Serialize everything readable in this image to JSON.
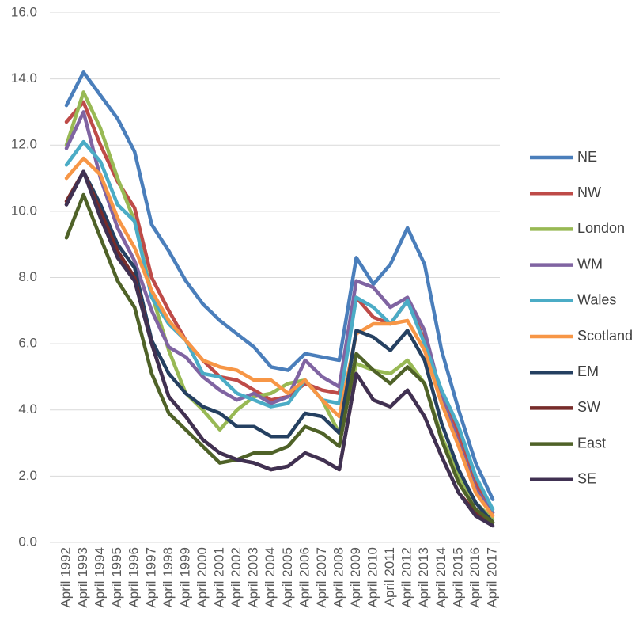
{
  "chart_data": {
    "type": "line",
    "categories": [
      "April 1992",
      "April 1993",
      "April 1994",
      "April 1995",
      "April 1996",
      "April 1997",
      "April 1998",
      "April 1999",
      "April 2000",
      "April 2001",
      "April 2002",
      "April 2003",
      "April 2004",
      "April 2005",
      "April 2006",
      "April 2007",
      "April 2008",
      "April 2009",
      "April 2010",
      "April 2011",
      "April 2012",
      "April 2013",
      "April 2014",
      "April 2015",
      "April 2016",
      "April 2017"
    ],
    "series": [
      {
        "name": "NE",
        "color": "#4a7ebb",
        "values": [
          13.2,
          14.2,
          13.5,
          12.8,
          11.8,
          9.6,
          8.8,
          7.9,
          7.2,
          6.7,
          6.3,
          5.9,
          5.3,
          5.2,
          5.7,
          5.6,
          5.5,
          8.6,
          7.8,
          8.4,
          9.5,
          8.4,
          5.8,
          4.0,
          2.4,
          1.3
        ]
      },
      {
        "name": "NW",
        "color": "#be4b48",
        "values": [
          12.7,
          13.3,
          12.0,
          10.9,
          10.1,
          8.0,
          7.0,
          6.1,
          5.5,
          5.0,
          4.9,
          4.6,
          4.3,
          4.4,
          4.8,
          4.6,
          4.5,
          7.4,
          6.8,
          6.6,
          7.3,
          6.1,
          4.5,
          3.3,
          1.8,
          0.9
        ]
      },
      {
        "name": "London",
        "color": "#98b954",
        "values": [
          12.0,
          13.6,
          12.5,
          11.0,
          9.7,
          7.5,
          5.8,
          4.5,
          4.0,
          3.4,
          4.0,
          4.4,
          4.5,
          4.8,
          4.9,
          4.3,
          3.3,
          5.4,
          5.2,
          5.1,
          5.5,
          4.8,
          3.2,
          2.0,
          1.2,
          0.7
        ]
      },
      {
        "name": "WM",
        "color": "#8064a2",
        "values": [
          11.9,
          13.0,
          11.0,
          9.5,
          8.5,
          7.0,
          5.9,
          5.6,
          5.0,
          4.6,
          4.3,
          4.5,
          4.2,
          4.4,
          5.5,
          5.0,
          4.7,
          7.9,
          7.7,
          7.1,
          7.4,
          6.4,
          4.4,
          3.0,
          1.6,
          0.9
        ]
      },
      {
        "name": "Wales",
        "color": "#4bacc6",
        "values": [
          11.4,
          12.1,
          11.5,
          10.2,
          9.7,
          7.4,
          6.6,
          6.1,
          5.1,
          5.0,
          4.5,
          4.3,
          4.1,
          4.2,
          4.9,
          4.3,
          4.2,
          7.4,
          7.1,
          6.6,
          7.3,
          6.0,
          4.6,
          3.5,
          2.0,
          1.0
        ]
      },
      {
        "name": "Scotland",
        "color": "#f79646",
        "values": [
          11.0,
          11.6,
          11.1,
          9.8,
          8.9,
          7.6,
          6.7,
          6.1,
          5.5,
          5.3,
          5.2,
          4.9,
          4.9,
          4.5,
          4.9,
          4.3,
          3.8,
          6.3,
          6.6,
          6.6,
          6.7,
          5.8,
          4.2,
          2.9,
          1.5,
          0.8
        ]
      },
      {
        "name": "EM",
        "color": "#254061",
        "values": [
          10.2,
          11.2,
          10.2,
          9.0,
          8.3,
          6.1,
          5.1,
          4.5,
          4.1,
          3.9,
          3.5,
          3.5,
          3.2,
          3.2,
          3.9,
          3.8,
          3.3,
          6.4,
          6.2,
          5.8,
          6.4,
          5.5,
          3.6,
          2.2,
          1.2,
          0.6
        ]
      },
      {
        "name": "SW",
        "color": "#772c2a",
        "values": [
          10.3,
          11.2,
          10.0,
          8.8,
          8.0,
          6.0,
          4.4,
          3.8,
          3.1,
          2.7,
          2.5,
          2.4,
          2.2,
          2.3,
          2.7,
          2.5,
          2.2,
          5.1,
          4.3,
          4.1,
          4.6,
          3.8,
          2.6,
          1.5,
          0.9,
          0.6
        ]
      },
      {
        "name": "East",
        "color": "#4f6228",
        "values": [
          9.2,
          10.5,
          9.2,
          7.9,
          7.1,
          5.1,
          3.9,
          3.4,
          2.9,
          2.4,
          2.5,
          2.7,
          2.7,
          2.9,
          3.5,
          3.3,
          2.9,
          5.7,
          5.2,
          4.8,
          5.3,
          4.8,
          3.1,
          1.8,
          1.0,
          0.6
        ]
      },
      {
        "name": "SE",
        "color": "#403152",
        "values": [
          10.2,
          11.2,
          9.8,
          8.6,
          7.9,
          6.0,
          4.4,
          3.8,
          3.1,
          2.7,
          2.5,
          2.4,
          2.2,
          2.3,
          2.7,
          2.5,
          2.2,
          5.1,
          4.3,
          4.1,
          4.6,
          3.8,
          2.6,
          1.5,
          0.8,
          0.5
        ]
      }
    ],
    "ylim": [
      0,
      16
    ],
    "yticks": [
      {
        "value": 0,
        "label": "0.0"
      },
      {
        "value": 2,
        "label": "2.0"
      },
      {
        "value": 4,
        "label": "4.0"
      },
      {
        "value": 6,
        "label": "6.0"
      },
      {
        "value": 8,
        "label": "8.0"
      },
      {
        "value": 10,
        "label": "10.0"
      },
      {
        "value": 12,
        "label": "12.0"
      },
      {
        "value": 14,
        "label": "14.0"
      },
      {
        "value": 16,
        "label": "16.0"
      }
    ],
    "grid": true,
    "legend": "right"
  }
}
